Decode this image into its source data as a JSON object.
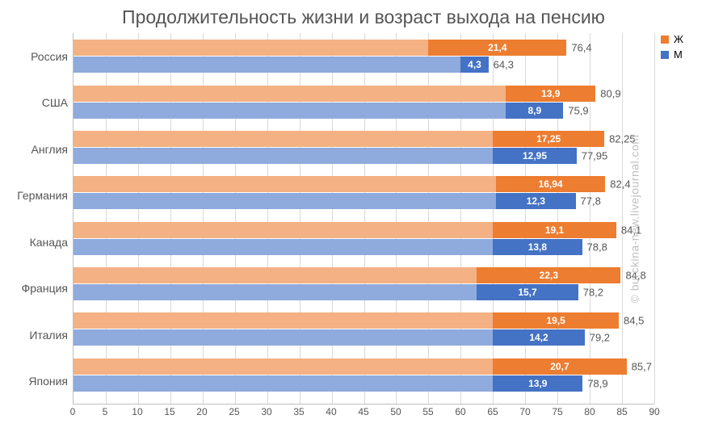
{
  "title": "Продолжительность жизни и возраст выхода на пенсию",
  "watermark": "© burckina-new.livejournal.com",
  "legend": {
    "female": {
      "label": "Ж",
      "color": "#ed7d31"
    },
    "male": {
      "label": "М",
      "color": "#4472c4"
    }
  },
  "colors": {
    "female_light": "#f4b183",
    "female_dark": "#ed7d31",
    "male_light": "#8faadc",
    "male_dark": "#4472c4",
    "grid": "#d9d9d9",
    "text": "#555555",
    "bg": "#ffffff"
  },
  "axis": {
    "xmin": 0,
    "xmax": 90,
    "xtick_step": 5
  },
  "countries": [
    {
      "name": "Россия",
      "female": {
        "retire": 55.0,
        "gap": 21.4,
        "total": 76.4
      },
      "male": {
        "retire": 60.0,
        "gap": 4.3,
        "total": 64.3
      }
    },
    {
      "name": "США",
      "female": {
        "retire": 67.0,
        "gap": 13.9,
        "total": 80.9
      },
      "male": {
        "retire": 67.0,
        "gap": 8.9,
        "total": 75.9
      }
    },
    {
      "name": "Англия",
      "female": {
        "retire": 65.0,
        "gap": 17.25,
        "total": 82.25
      },
      "male": {
        "retire": 65.0,
        "gap": 12.95,
        "total": 77.95
      }
    },
    {
      "name": "Германия",
      "female": {
        "retire": 65.46,
        "gap": 16.94,
        "total": 82.4
      },
      "male": {
        "retire": 65.5,
        "gap": 12.3,
        "total": 77.8
      }
    },
    {
      "name": "Канада",
      "female": {
        "retire": 65.0,
        "gap": 19.1,
        "total": 84.1
      },
      "male": {
        "retire": 65.0,
        "gap": 13.8,
        "total": 78.8
      }
    },
    {
      "name": "Франция",
      "female": {
        "retire": 62.5,
        "gap": 22.3,
        "total": 84.8
      },
      "male": {
        "retire": 62.5,
        "gap": 15.7,
        "total": 78.2
      }
    },
    {
      "name": "Италия",
      "female": {
        "retire": 65.0,
        "gap": 19.5,
        "total": 84.5
      },
      "male": {
        "retire": 65.0,
        "gap": 14.2,
        "total": 79.2
      }
    },
    {
      "name": "Япония",
      "female": {
        "retire": 65.0,
        "gap": 20.7,
        "total": 85.7
      },
      "male": {
        "retire": 65.0,
        "gap": 13.9,
        "total": 78.9
      }
    }
  ],
  "label_format": {
    "decimal_sep": ","
  }
}
